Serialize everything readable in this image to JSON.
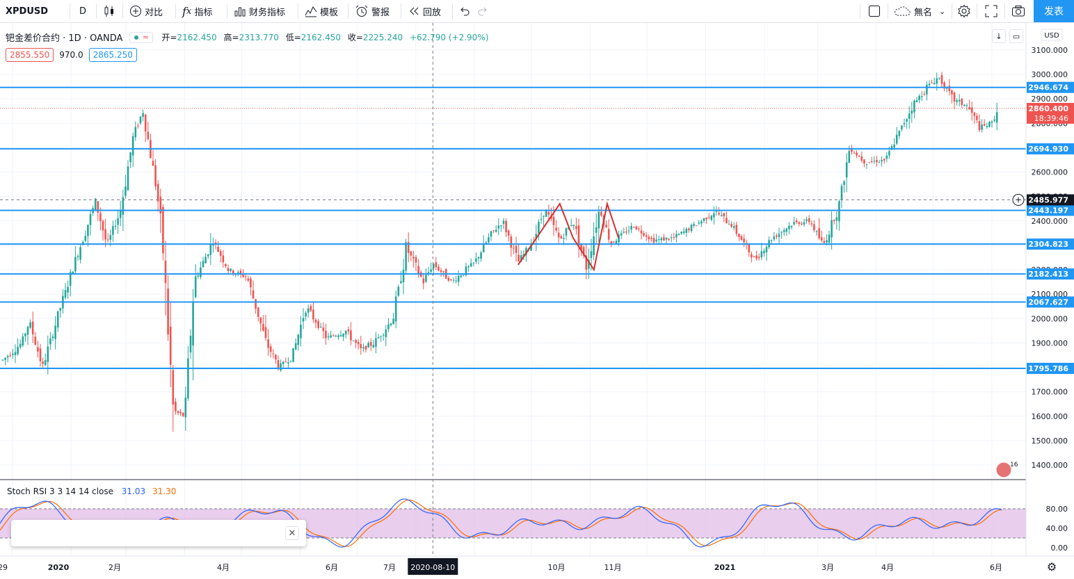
{
  "toolbar": {
    "symbol": "XPDUSD",
    "interval": "D",
    "compare_label": "对比",
    "indicators_label": "指标",
    "financials_label": "财务指标",
    "templates_label": "模板",
    "alert_label": "警报",
    "replay_label": "回放",
    "layout_name": "無名",
    "publish_label": "发表",
    "icons": [
      "candles-icon",
      "plus-circle-icon",
      "fx-icon",
      "bar-chart-icon",
      "templates-icon",
      "alarm-icon",
      "replay-icon",
      "undo-icon",
      "redo-icon",
      "layout-icon",
      "cloud-icon",
      "gear-icon",
      "fullscreen-icon",
      "camera-icon"
    ]
  },
  "legend": {
    "title": "钯金差价合约 · 1D · OANDA",
    "open_label": "开=",
    "open": "2162.450",
    "high_label": "高=",
    "high": "2313.770",
    "low_label": "低=",
    "low": "2162.450",
    "close_label": "收=",
    "close": "2225.240",
    "change": "+62.790 (+2.90%)",
    "bid": "2855.550",
    "spread": "970.0",
    "ask": "2865.250"
  },
  "price_axis": {
    "currency": "USD",
    "current_price": "2860.400",
    "countdown": "18:39:46",
    "crosshair_price": "2485.977"
  },
  "oscillator": {
    "name": "Stoch RSI 3 3 14 14 close",
    "k_value": "31.03",
    "d_value": "31.30",
    "levels": [
      "80.00",
      "40.00",
      "0.00"
    ]
  },
  "time_axis": {
    "crosshair_date": "2020-08-10",
    "labels": [
      "29",
      "2020",
      "2月",
      "4月",
      "6月",
      "7月",
      "10月",
      "11月",
      "2021",
      "3月",
      "4月",
      "6月"
    ]
  },
  "badge": {
    "count": "16"
  },
  "colors": {
    "up": "#26a69a",
    "down": "#ef5350",
    "hline": "#2196f3",
    "stoch_k": "#2962ff",
    "stoch_d": "#ff6d00",
    "band": "#e1bee7",
    "zigzag": "#d32f2f"
  },
  "chart_data": {
    "type": "candlestick",
    "symbol": "XPDUSD",
    "interval": "1D",
    "ylim": [
      1350,
      3200
    ],
    "y_ticks": [
      1400,
      1500,
      1600,
      1700,
      1800,
      1900,
      2000,
      2100,
      2200,
      2300,
      2400,
      2500,
      2600,
      2700,
      2800,
      2900,
      3000,
      3100
    ],
    "horizontal_lines": [
      2946.674,
      2694.93,
      2443.197,
      2304.823,
      2182.413,
      2067.627,
      1795.786
    ],
    "horizontal_line_labels": [
      "2946.674",
      "2694.930",
      "2443.197",
      "2304.823",
      "2182.413",
      "2067.627",
      "1795.786"
    ],
    "current_price": 2860.4,
    "crosshair_price": 2485.977,
    "price_path": [
      {
        "date": "2019-12-27",
        "close": 1830
      },
      {
        "date": "2020-01-06",
        "close": 1900
      },
      {
        "date": "2020-01-10",
        "close": 1990
      },
      {
        "date": "2020-01-17",
        "close": 1800
      },
      {
        "date": "2020-01-27",
        "close": 2060
      },
      {
        "date": "2020-02-06",
        "close": 2300
      },
      {
        "date": "2020-02-14",
        "close": 2480
      },
      {
        "date": "2020-02-20",
        "close": 2300
      },
      {
        "date": "2020-02-27",
        "close": 2440
      },
      {
        "date": "2020-03-05",
        "close": 2750
      },
      {
        "date": "2020-03-10",
        "close": 2850
      },
      {
        "date": "2020-03-17",
        "close": 2540
      },
      {
        "date": "2020-03-20",
        "close": 2350
      },
      {
        "date": "2020-03-26",
        "close": 1620
      },
      {
        "date": "2020-04-01",
        "close": 1600
      },
      {
        "date": "2020-04-06",
        "close": 2150
      },
      {
        "date": "2020-04-16",
        "close": 2320
      },
      {
        "date": "2020-04-24",
        "close": 2200
      },
      {
        "date": "2020-05-04",
        "close": 2170
      },
      {
        "date": "2020-05-14",
        "close": 1900
      },
      {
        "date": "2020-05-21",
        "close": 1800
      },
      {
        "date": "2020-05-28",
        "close": 1850
      },
      {
        "date": "2020-06-04",
        "close": 2050
      },
      {
        "date": "2020-06-15",
        "close": 1920
      },
      {
        "date": "2020-06-25",
        "close": 1950
      },
      {
        "date": "2020-07-03",
        "close": 1870
      },
      {
        "date": "2020-07-10",
        "close": 1900
      },
      {
        "date": "2020-07-20",
        "close": 2000
      },
      {
        "date": "2020-07-27",
        "close": 2290
      },
      {
        "date": "2020-08-05",
        "close": 2150
      },
      {
        "date": "2020-08-10",
        "close": 2225
      },
      {
        "date": "2020-08-20",
        "close": 2150
      },
      {
        "date": "2020-09-01",
        "close": 2230
      },
      {
        "date": "2020-09-10",
        "close": 2350
      },
      {
        "date": "2020-09-16",
        "close": 2400
      },
      {
        "date": "2020-09-24",
        "close": 2230
      },
      {
        "date": "2020-10-02",
        "close": 2320
      },
      {
        "date": "2020-10-08",
        "close": 2450
      },
      {
        "date": "2020-10-16",
        "close": 2320
      },
      {
        "date": "2020-10-23",
        "close": 2400
      },
      {
        "date": "2020-10-30",
        "close": 2210
      },
      {
        "date": "2020-11-06",
        "close": 2450
      },
      {
        "date": "2020-11-12",
        "close": 2310
      },
      {
        "date": "2020-11-24",
        "close": 2380
      },
      {
        "date": "2020-12-04",
        "close": 2320
      },
      {
        "date": "2020-12-15",
        "close": 2330
      },
      {
        "date": "2020-12-28",
        "close": 2390
      },
      {
        "date": "2021-01-06",
        "close": 2440
      },
      {
        "date": "2021-01-15",
        "close": 2380
      },
      {
        "date": "2021-01-27",
        "close": 2240
      },
      {
        "date": "2021-02-05",
        "close": 2330
      },
      {
        "date": "2021-02-16",
        "close": 2390
      },
      {
        "date": "2021-02-25",
        "close": 2400
      },
      {
        "date": "2021-03-04",
        "close": 2300
      },
      {
        "date": "2021-03-12",
        "close": 2450
      },
      {
        "date": "2021-03-18",
        "close": 2700
      },
      {
        "date": "2021-03-26",
        "close": 2640
      },
      {
        "date": "2021-04-06",
        "close": 2650
      },
      {
        "date": "2021-04-13",
        "close": 2760
      },
      {
        "date": "2021-04-20",
        "close": 2870
      },
      {
        "date": "2021-04-28",
        "close": 2950
      },
      {
        "date": "2021-05-04",
        "close": 2990
      },
      {
        "date": "2021-05-11",
        "close": 2900
      },
      {
        "date": "2021-05-19",
        "close": 2870
      },
      {
        "date": "2021-05-26",
        "close": 2780
      },
      {
        "date": "2021-06-01",
        "close": 2800
      },
      {
        "date": "2021-06-04",
        "close": 2860
      }
    ],
    "stoch_rsi": {
      "k": 31.03,
      "d": 31.3,
      "upper_band": 80,
      "lower_band": 20,
      "ylim": [
        0,
        100
      ]
    }
  }
}
